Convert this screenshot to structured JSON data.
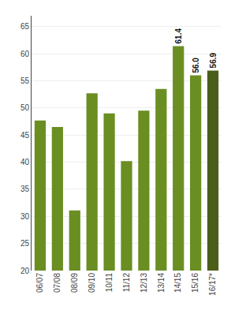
{
  "chart_data": {
    "type": "bar",
    "categories": [
      "06/07",
      "07/08",
      "08/09",
      "09/10",
      "10/11",
      "11/12",
      "12/13",
      "13/14",
      "14/15",
      "15/16",
      "16/17*"
    ],
    "values": [
      47.7,
      46.5,
      31.1,
      52.7,
      49.0,
      40.2,
      49.5,
      53.5,
      61.4,
      56.0,
      56.9
    ],
    "colors": [
      "#6b8e23",
      "#6b8e23",
      "#6b8e23",
      "#6b8e23",
      "#6b8e23",
      "#6b8e23",
      "#6b8e23",
      "#6b8e23",
      "#6b8e23",
      "#6b8e23",
      "#4a5e1a"
    ],
    "data_labels": true,
    "value_labels": [
      null,
      null,
      null,
      null,
      null,
      null,
      null,
      null,
      "61.4",
      "56.0",
      "56.9"
    ],
    "ylim": [
      20,
      67
    ],
    "yticks": [
      20,
      25,
      30,
      35,
      40,
      45,
      50,
      55,
      60,
      65
    ],
    "grid": true
  }
}
